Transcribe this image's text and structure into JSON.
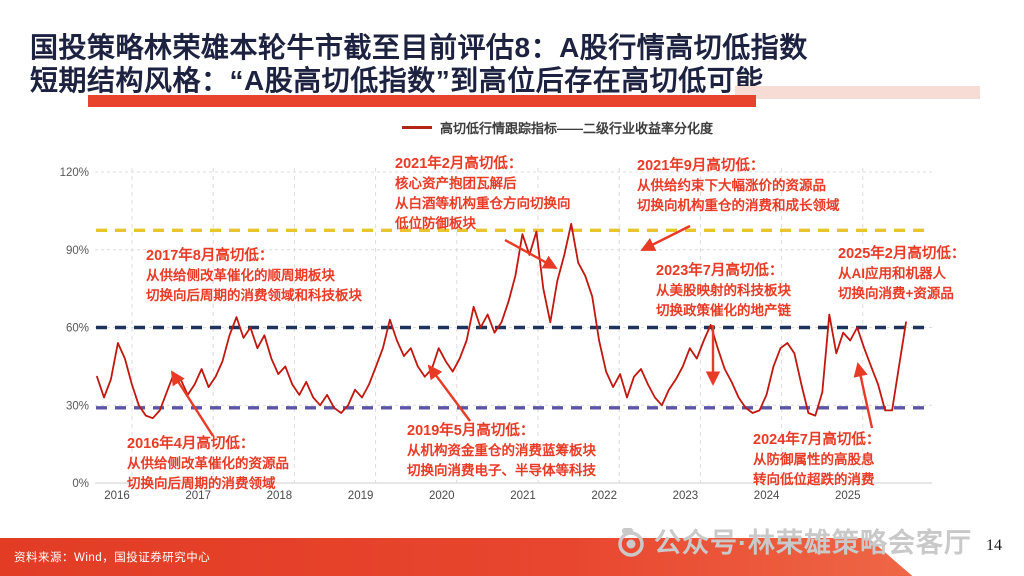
{
  "slide": {
    "title_line1": "国投策略林荣雄本轮牛市截至目前评估8：A股行情高切低指数",
    "title_line2": "短期结构风格：“A股高切低指数”到高位后存在高切低可能",
    "source": "资料来源：Wind，国投证券研究中心",
    "watermark": "公众号·林荣雄策略会客厅",
    "page_number": "14",
    "accent_red": "#e8432d",
    "title_color": "#1c2240"
  },
  "chart_data": {
    "type": "line",
    "title": "高切低行情跟踪指标——二级行业收益率分化度",
    "legend": [
      {
        "name": "高切低行情跟踪指标——二级行业收益率分化度",
        "color": "#b22318"
      }
    ],
    "x_labels": [
      "2016",
      "2017",
      "2018",
      "2019",
      "2020",
      "2021",
      "2022",
      "2023",
      "2024",
      "2025"
    ],
    "y_ticks": [
      {
        "value": 120,
        "label": "120%"
      },
      {
        "value": 90,
        "label": "90%"
      },
      {
        "value": 60,
        "label": "60%"
      },
      {
        "value": 30,
        "label": "30%"
      },
      {
        "value": 0,
        "label": "0%"
      }
    ],
    "ylim": [
      0,
      120
    ],
    "grid": true,
    "legend_position": "top",
    "series": [
      {
        "name": "高切低行情跟踪指标——二级行业收益率分化度",
        "color": "#c0170f",
        "start": "2016-01",
        "freq": "monthly",
        "unit": "%",
        "values": [
          41,
          33,
          40,
          54,
          48,
          38,
          30,
          26,
          25,
          28,
          35,
          42,
          40,
          34,
          38,
          44,
          37,
          41,
          47,
          57,
          64,
          56,
          60,
          52,
          57,
          48,
          42,
          45,
          38,
          34,
          39,
          33,
          30,
          34,
          29,
          27,
          30,
          36,
          33,
          38,
          45,
          52,
          63,
          55,
          49,
          52,
          45,
          41,
          44,
          52,
          47,
          43,
          48,
          55,
          68,
          60,
          65,
          58,
          62,
          70,
          80,
          96,
          88,
          97,
          75,
          62,
          78,
          88,
          100,
          85,
          80,
          72,
          55,
          43,
          37,
          42,
          33,
          41,
          44,
          38,
          33,
          30,
          36,
          40,
          45,
          52,
          48,
          55,
          61,
          52,
          44,
          39,
          33,
          29,
          27,
          28,
          34,
          45,
          52,
          54,
          50,
          38,
          27,
          26,
          35,
          65,
          50,
          58,
          55,
          60,
          52,
          45,
          38,
          28,
          28,
          45,
          62
        ]
      }
    ],
    "ref_lines": [
      {
        "value": 97.5,
        "color": "#e9c52d",
        "style": "dashed"
      },
      {
        "value": 60,
        "color": "#20335c",
        "style": "dashed"
      },
      {
        "value": 29,
        "color": "#5c55a5",
        "style": "dashed"
      }
    ],
    "annotations": [
      {
        "id": "2016-04",
        "lines": [
          "2016年4月高切低：",
          "从供给侧改革催化的资源品",
          "切换向后周期的消费领域"
        ]
      },
      {
        "id": "2017-08",
        "lines": [
          "2017年8月高切低：",
          "从供给侧改革催化的顺周期板块",
          "切换向后周期的消费领域和科技板块"
        ]
      },
      {
        "id": "2019-05",
        "lines": [
          "2019年5月高切低：",
          "从机构资金重仓的消费蓝筹板块",
          "切换向消费电子、半导体等科技"
        ]
      },
      {
        "id": "2021-02",
        "lines": [
          "2021年2月高切低：",
          "核心资产抱团瓦解后",
          "从白酒等机构重仓方向切换向",
          "低位防御板块"
        ]
      },
      {
        "id": "2021-09",
        "lines": [
          "2021年9月高切低：",
          "从供给约束下大幅涨价的资源品",
          "切换向机构重仓的消费和成长领域"
        ]
      },
      {
        "id": "2023-07",
        "lines": [
          "2023年7月高切低：",
          "从美股映射的科技板块",
          "切换政策催化的地产链"
        ]
      },
      {
        "id": "2024-07",
        "lines": [
          "2024年7月高切低：",
          "从防御属性的高股息",
          "转向低位超跌的消费"
        ]
      },
      {
        "id": "2025-02",
        "lines": [
          "2025年2月高切低：",
          "从AI应用和机器人",
          "切换向消费+资源品"
        ]
      }
    ],
    "arrows": [
      {
        "from": [
          213,
          436
        ],
        "to": [
          172,
          372
        ]
      },
      {
        "from": [
          505,
          240
        ],
        "to": [
          556,
          268
        ]
      },
      {
        "from": [
          690,
          226
        ],
        "to": [
          642,
          250
        ]
      },
      {
        "from": [
          470,
          421
        ],
        "to": [
          429,
          366
        ]
      },
      {
        "from": [
          713,
          325
        ],
        "to": [
          713,
          384
        ]
      },
      {
        "from": [
          872,
          428
        ],
        "to": [
          858,
          364
        ]
      }
    ],
    "annotation_color": "#e83b26"
  }
}
